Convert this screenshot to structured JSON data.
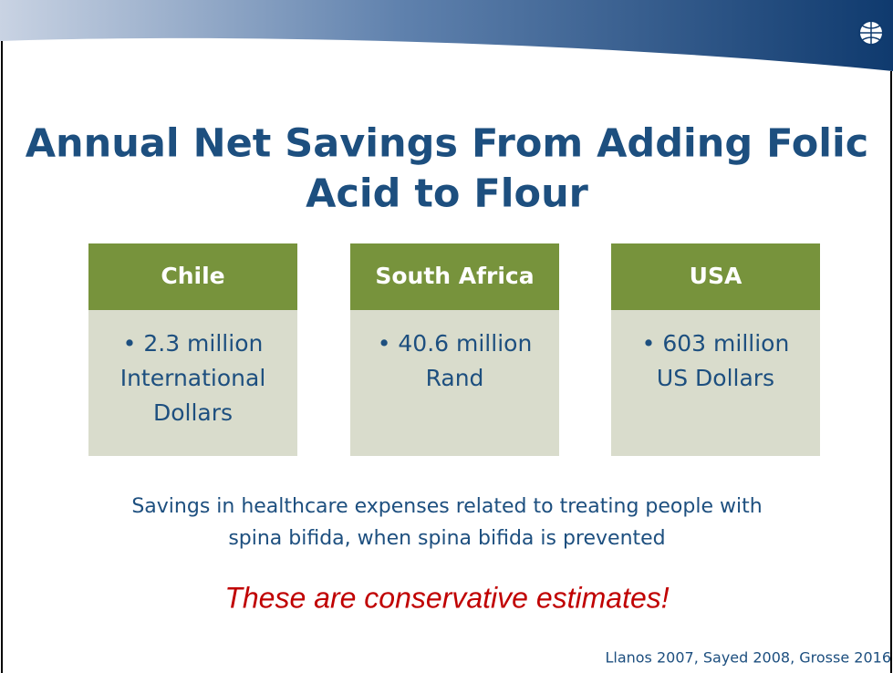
{
  "title": [
    "Annual Net Savings From Adding Folic",
    "Acid to Flour"
  ],
  "boxes": [
    {
      "header": "Chile",
      "lines": [
        "• 2.3 million",
        "International",
        "Dollars"
      ]
    },
    {
      "header": "South Africa",
      "lines": [
        "• 40.6 million",
        "Rand"
      ]
    },
    {
      "header": "USA",
      "lines": [
        "• 603 million",
        "US Dollars"
      ]
    }
  ],
  "caption": [
    "Savings in healthcare expenses related to treating people with",
    "spina bifida, when spina bifida is prevented"
  ],
  "emphasis": "These are conservative estimates!",
  "citation": "Llanos 2007, Sayed 2008, Grosse 2016"
}
